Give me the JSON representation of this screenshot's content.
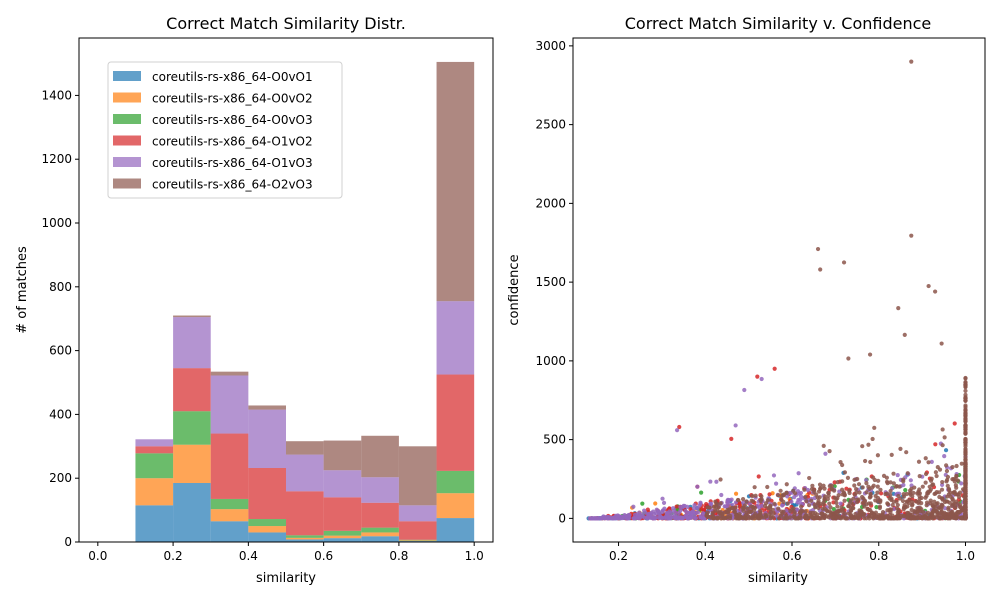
{
  "chart_data": [
    {
      "type": "bar",
      "stacked": true,
      "title": "Correct Match Similarity Distr.",
      "xlabel": "similarity",
      "ylabel": "# of matches",
      "xlim": [
        -0.05,
        1.05
      ],
      "ylim": [
        0,
        1580
      ],
      "xticks": [
        "0.0",
        "0.2",
        "0.4",
        "0.6",
        "0.8",
        "1.0"
      ],
      "yticks": [
        "0",
        "200",
        "400",
        "600",
        "800",
        "1000",
        "1200",
        "1400"
      ],
      "bin_edges": [
        0.1,
        0.2,
        0.3,
        0.4,
        0.5,
        0.6,
        0.7,
        0.8,
        0.9,
        1.0
      ],
      "legend_position": "upper-left",
      "series": [
        {
          "name": "coreutils-rs-x86_64-O0vO1",
          "color": "#1f77b4",
          "values": [
            115,
            185,
            65,
            30,
            8,
            12,
            18,
            3,
            75
          ]
        },
        {
          "name": "coreutils-rs-x86_64-O0vO2",
          "color": "#ff7f0e",
          "values": [
            85,
            120,
            38,
            20,
            5,
            8,
            12,
            2,
            78
          ]
        },
        {
          "name": "coreutils-rs-x86_64-O0vO3",
          "color": "#2ca02c",
          "values": [
            78,
            105,
            32,
            22,
            8,
            15,
            15,
            2,
            70
          ]
        },
        {
          "name": "coreutils-rs-x86_64-O1vO2",
          "color": "#d62728",
          "values": [
            22,
            135,
            205,
            160,
            138,
            105,
            78,
            58,
            302
          ]
        },
        {
          "name": "coreutils-rs-x86_64-O1vO3",
          "color": "#9467bd",
          "values": [
            22,
            160,
            182,
            183,
            115,
            85,
            80,
            50,
            230
          ]
        },
        {
          "name": "coreutils-rs-x86_64-O2vO3",
          "color": "#8c564b",
          "values": [
            0,
            5,
            12,
            13,
            42,
            93,
            130,
            185,
            750
          ]
        }
      ]
    },
    {
      "type": "scatter",
      "title": "Correct Match Similarity v. Confidence",
      "xlabel": "similarity",
      "ylabel": "confidence",
      "xlim": [
        0.095,
        1.045
      ],
      "ylim": [
        -150,
        3050
      ],
      "xticks": [
        "0.2",
        "0.4",
        "0.6",
        "0.8",
        "1.0"
      ],
      "yticks": [
        "0",
        "500",
        "1000",
        "1500",
        "2000",
        "2500",
        "3000"
      ],
      "series_colors": [
        "#1f77b4",
        "#ff7f0e",
        "#2ca02c",
        "#d62728",
        "#9467bd",
        "#8c564b"
      ],
      "notable_points": [
        {
          "x": 0.875,
          "y": 2900,
          "series": 5
        },
        {
          "x": 0.875,
          "y": 1795,
          "series": 5
        },
        {
          "x": 0.66,
          "y": 1710,
          "series": 5
        },
        {
          "x": 0.72,
          "y": 1625,
          "series": 5
        },
        {
          "x": 0.665,
          "y": 1580,
          "series": 5
        },
        {
          "x": 0.915,
          "y": 1475,
          "series": 5
        },
        {
          "x": 0.93,
          "y": 1440,
          "series": 5
        },
        {
          "x": 0.845,
          "y": 1335,
          "series": 5
        },
        {
          "x": 0.86,
          "y": 1165,
          "series": 5
        },
        {
          "x": 0.945,
          "y": 1110,
          "series": 5
        },
        {
          "x": 0.78,
          "y": 1040,
          "series": 5
        },
        {
          "x": 0.73,
          "y": 1015,
          "series": 5
        },
        {
          "x": 0.56,
          "y": 950,
          "series": 3
        },
        {
          "x": 0.52,
          "y": 900,
          "series": 3
        },
        {
          "x": 0.49,
          "y": 815,
          "series": 4
        },
        {
          "x": 0.53,
          "y": 885,
          "series": 4
        },
        {
          "x": 0.34,
          "y": 580,
          "series": 3
        },
        {
          "x": 0.335,
          "y": 560,
          "series": 4
        },
        {
          "x": 0.46,
          "y": 505,
          "series": 3
        },
        {
          "x": 0.47,
          "y": 590,
          "series": 4
        }
      ]
    }
  ]
}
